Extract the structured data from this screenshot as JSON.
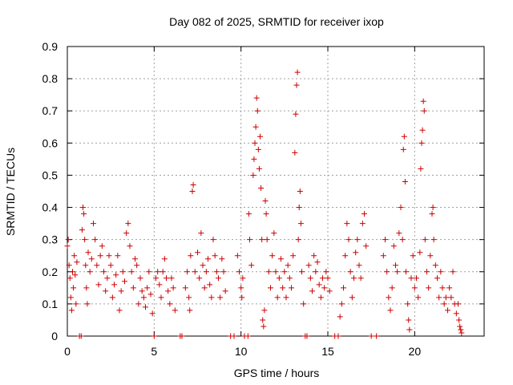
{
  "chart_data": {
    "type": "scatter",
    "title": "Day 082 of 2025, SRMTID for receiver ixop",
    "xlabel": "GPS time / hours",
    "ylabel": "SRMTID / TECUs",
    "xlim": [
      0,
      24
    ],
    "ylim": [
      0,
      0.9
    ],
    "xticks": [
      0,
      5,
      10,
      15,
      20
    ],
    "xtick_labels": [
      "0",
      "5",
      "10",
      "15",
      "20"
    ],
    "yticks": [
      0,
      0.1,
      0.2,
      0.3,
      0.4,
      0.5,
      0.6,
      0.7,
      0.8,
      0.9
    ],
    "ytick_labels": [
      "0",
      "0.1",
      "0.2",
      "0.3",
      "0.4",
      "0.5",
      "0.6",
      "0.7",
      "0.8",
      "0.9"
    ],
    "grid": true,
    "marker": "+",
    "color": "#cc0000",
    "series": [
      {
        "name": "SRMTID",
        "points": [
          [
            0.0,
            0.28
          ],
          [
            0.05,
            0.3
          ],
          [
            0.1,
            0.22
          ],
          [
            0.15,
            0.18
          ],
          [
            0.2,
            0.12
          ],
          [
            0.25,
            0.08
          ],
          [
            0.3,
            0.2
          ],
          [
            0.35,
            0.15
          ],
          [
            0.4,
            0.25
          ],
          [
            0.45,
            0.19
          ],
          [
            0.5,
            0.1
          ],
          [
            0.55,
            0.23
          ],
          [
            0.7,
            0.0
          ],
          [
            0.8,
            0.0
          ],
          [
            0.85,
            0.33
          ],
          [
            0.9,
            0.4
          ],
          [
            0.95,
            0.38
          ],
          [
            1.0,
            0.3
          ],
          [
            1.05,
            0.22
          ],
          [
            1.1,
            0.15
          ],
          [
            1.15,
            0.1
          ],
          [
            1.2,
            0.26
          ],
          [
            1.3,
            0.2
          ],
          [
            1.4,
            0.24
          ],
          [
            1.5,
            0.35
          ],
          [
            1.6,
            0.3
          ],
          [
            1.7,
            0.22
          ],
          [
            1.8,
            0.16
          ],
          [
            1.9,
            0.25
          ],
          [
            2.0,
            0.28
          ],
          [
            2.1,
            0.2
          ],
          [
            2.2,
            0.14
          ],
          [
            2.3,
            0.18
          ],
          [
            2.4,
            0.25
          ],
          [
            2.5,
            0.22
          ],
          [
            2.6,
            0.12
          ],
          [
            2.7,
            0.16
          ],
          [
            2.8,
            0.19
          ],
          [
            2.9,
            0.25
          ],
          [
            3.0,
            0.08
          ],
          [
            3.1,
            0.14
          ],
          [
            3.2,
            0.2
          ],
          [
            3.3,
            0.17
          ],
          [
            3.4,
            0.32
          ],
          [
            3.5,
            0.35
          ],
          [
            3.6,
            0.28
          ],
          [
            3.7,
            0.2
          ],
          [
            3.8,
            0.15
          ],
          [
            3.9,
            0.24
          ],
          [
            4.0,
            0.22
          ],
          [
            4.1,
            0.1
          ],
          [
            4.2,
            0.18
          ],
          [
            4.3,
            0.14
          ],
          [
            4.4,
            0.12
          ],
          [
            4.5,
            0.09
          ],
          [
            4.6,
            0.15
          ],
          [
            4.7,
            0.2
          ],
          [
            4.8,
            0.13
          ],
          [
            4.9,
            0.07
          ],
          [
            5.0,
            0.0
          ],
          [
            5.1,
            0.18
          ],
          [
            5.2,
            0.2
          ],
          [
            5.3,
            0.16
          ],
          [
            5.4,
            0.12
          ],
          [
            5.5,
            0.2
          ],
          [
            5.6,
            0.24
          ],
          [
            5.7,
            0.18
          ],
          [
            5.8,
            0.14
          ],
          [
            5.9,
            0.1
          ],
          [
            6.0,
            0.18
          ],
          [
            6.1,
            0.15
          ],
          [
            6.2,
            0.08
          ],
          [
            6.5,
            0.0
          ],
          [
            6.6,
            0.0
          ],
          [
            6.8,
            0.15
          ],
          [
            6.9,
            0.2
          ],
          [
            7.0,
            0.12
          ],
          [
            7.05,
            0.08
          ],
          [
            7.1,
            0.25
          ],
          [
            7.2,
            0.45
          ],
          [
            7.25,
            0.47
          ],
          [
            7.35,
            0.2
          ],
          [
            7.5,
            0.26
          ],
          [
            7.6,
            0.18
          ],
          [
            7.7,
            0.32
          ],
          [
            7.8,
            0.22
          ],
          [
            7.9,
            0.15
          ],
          [
            8.0,
            0.2
          ],
          [
            8.1,
            0.24
          ],
          [
            8.2,
            0.16
          ],
          [
            8.3,
            0.12
          ],
          [
            8.4,
            0.3
          ],
          [
            8.5,
            0.25
          ],
          [
            8.6,
            0.2
          ],
          [
            8.7,
            0.18
          ],
          [
            8.8,
            0.12
          ],
          [
            8.9,
            0.24
          ],
          [
            9.0,
            0.2
          ],
          [
            9.1,
            0.14
          ],
          [
            9.4,
            0.0
          ],
          [
            9.6,
            0.0
          ],
          [
            9.8,
            0.25
          ],
          [
            9.9,
            0.2
          ],
          [
            10.0,
            0.15
          ],
          [
            10.05,
            0.12
          ],
          [
            10.1,
            0.18
          ],
          [
            10.2,
            0.0
          ],
          [
            10.4,
            0.0
          ],
          [
            10.45,
            0.38
          ],
          [
            10.5,
            0.3
          ],
          [
            10.6,
            0.22
          ],
          [
            10.7,
            0.5
          ],
          [
            10.75,
            0.55
          ],
          [
            10.8,
            0.6
          ],
          [
            10.85,
            0.65
          ],
          [
            10.9,
            0.74
          ],
          [
            10.95,
            0.7
          ],
          [
            11.0,
            0.58
          ],
          [
            11.05,
            0.52
          ],
          [
            11.1,
            0.62
          ],
          [
            11.15,
            0.46
          ],
          [
            11.2,
            0.3
          ],
          [
            11.25,
            0.05
          ],
          [
            11.3,
            0.03
          ],
          [
            11.35,
            0.08
          ],
          [
            11.4,
            0.42
          ],
          [
            11.45,
            0.38
          ],
          [
            11.5,
            0.3
          ],
          [
            11.6,
            0.2
          ],
          [
            11.7,
            0.15
          ],
          [
            11.8,
            0.25
          ],
          [
            11.9,
            0.32
          ],
          [
            12.0,
            0.2
          ],
          [
            12.1,
            0.12
          ],
          [
            12.2,
            0.18
          ],
          [
            12.3,
            0.24
          ],
          [
            12.4,
            0.15
          ],
          [
            12.5,
            0.2
          ],
          [
            12.6,
            0.12
          ],
          [
            12.7,
            0.22
          ],
          [
            12.8,
            0.18
          ],
          [
            12.9,
            0.15
          ],
          [
            13.0,
            0.25
          ],
          [
            13.1,
            0.57
          ],
          [
            13.15,
            0.69
          ],
          [
            13.2,
            0.78
          ],
          [
            13.25,
            0.82
          ],
          [
            13.3,
            0.3
          ],
          [
            13.35,
            0.4
          ],
          [
            13.4,
            0.45
          ],
          [
            13.45,
            0.35
          ],
          [
            13.5,
            0.2
          ],
          [
            13.6,
            0.1
          ],
          [
            13.7,
            0.0
          ],
          [
            13.8,
            0.0
          ],
          [
            13.9,
            0.22
          ],
          [
            14.0,
            0.18
          ],
          [
            14.1,
            0.14
          ],
          [
            14.2,
            0.25
          ],
          [
            14.3,
            0.2
          ],
          [
            14.4,
            0.23
          ],
          [
            14.5,
            0.16
          ],
          [
            14.6,
            0.12
          ],
          [
            14.7,
            0.18
          ],
          [
            14.8,
            0.15
          ],
          [
            14.9,
            0.2
          ],
          [
            15.0,
            0.18
          ],
          [
            15.1,
            0.14
          ],
          [
            15.4,
            0.0
          ],
          [
            15.6,
            0.0
          ],
          [
            15.7,
            0.06
          ],
          [
            15.8,
            0.1
          ],
          [
            15.9,
            0.15
          ],
          [
            16.0,
            0.25
          ],
          [
            16.1,
            0.35
          ],
          [
            16.2,
            0.3
          ],
          [
            16.3,
            0.2
          ],
          [
            16.4,
            0.12
          ],
          [
            16.5,
            0.18
          ],
          [
            16.6,
            0.26
          ],
          [
            16.7,
            0.3
          ],
          [
            16.8,
            0.22
          ],
          [
            16.9,
            0.18
          ],
          [
            17.0,
            0.35
          ],
          [
            17.1,
            0.38
          ],
          [
            17.2,
            0.28
          ],
          [
            17.5,
            0.0
          ],
          [
            17.8,
            0.0
          ],
          [
            18.2,
            0.25
          ],
          [
            18.3,
            0.3
          ],
          [
            18.4,
            0.2
          ],
          [
            18.5,
            0.12
          ],
          [
            18.6,
            0.08
          ],
          [
            18.7,
            0.15
          ],
          [
            18.8,
            0.28
          ],
          [
            18.9,
            0.22
          ],
          [
            19.0,
            0.2
          ],
          [
            19.1,
            0.32
          ],
          [
            19.2,
            0.4
          ],
          [
            19.3,
            0.3
          ],
          [
            19.35,
            0.58
          ],
          [
            19.4,
            0.62
          ],
          [
            19.45,
            0.48
          ],
          [
            19.5,
            0.2
          ],
          [
            19.6,
            0.1
          ],
          [
            19.65,
            0.05
          ],
          [
            19.7,
            0.02
          ],
          [
            19.8,
            0.18
          ],
          [
            19.9,
            0.25
          ],
          [
            20.0,
            0.15
          ],
          [
            20.1,
            0.18
          ],
          [
            20.2,
            0.12
          ],
          [
            20.3,
            0.26
          ],
          [
            20.35,
            0.52
          ],
          [
            20.4,
            0.6
          ],
          [
            20.45,
            0.64
          ],
          [
            20.5,
            0.73
          ],
          [
            20.55,
            0.7
          ],
          [
            20.6,
            0.3
          ],
          [
            20.7,
            0.2
          ],
          [
            20.8,
            0.15
          ],
          [
            20.9,
            0.25
          ],
          [
            21.0,
            0.38
          ],
          [
            21.05,
            0.4
          ],
          [
            21.1,
            0.3
          ],
          [
            21.2,
            0.22
          ],
          [
            21.3,
            0.18
          ],
          [
            21.4,
            0.12
          ],
          [
            21.5,
            0.2
          ],
          [
            21.6,
            0.15
          ],
          [
            21.7,
            0.1
          ],
          [
            21.8,
            0.12
          ],
          [
            21.9,
            0.08
          ],
          [
            22.0,
            0.15
          ],
          [
            22.1,
            0.12
          ],
          [
            22.2,
            0.2
          ],
          [
            22.3,
            0.1
          ],
          [
            22.4,
            0.07
          ],
          [
            22.5,
            0.1
          ],
          [
            22.55,
            0.05
          ],
          [
            22.6,
            0.03
          ],
          [
            22.65,
            0.02
          ],
          [
            22.7,
            0.01
          ]
        ]
      }
    ]
  }
}
